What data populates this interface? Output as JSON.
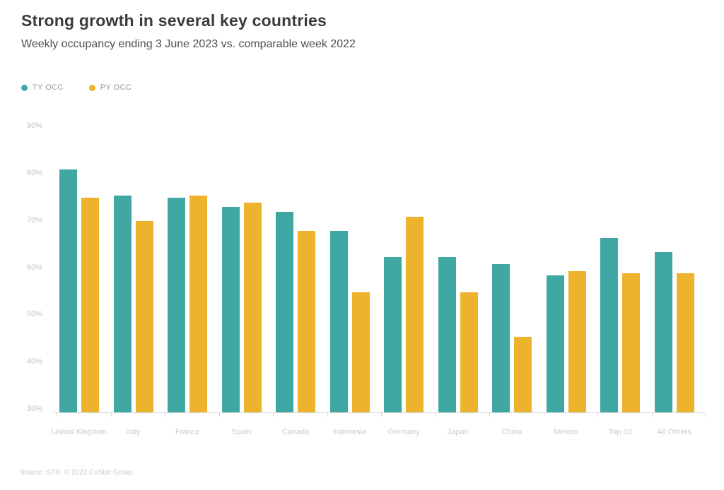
{
  "header": {
    "title": "Strong growth in several key countries",
    "subtitle": "Weekly occupancy ending 3 June 2023 vs. comparable week 2022"
  },
  "legend": {
    "items": [
      {
        "label": "TY OCC",
        "color": "#3fa8a3"
      },
      {
        "label": "PY OCC",
        "color": "#edb32c"
      }
    ]
  },
  "footer": {
    "source": "Source: STR. © 2023 CoStar Group."
  },
  "colors": {
    "ty_bar": "#3fa8a3",
    "py_bar": "#edb32c",
    "title_text": "#3b3b3b",
    "axis_text": "#c0c0c0",
    "background": "#ffffff"
  },
  "chart_data": {
    "type": "bar",
    "title": "Strong growth in several key countries",
    "subtitle": "Weekly occupancy ending 3 June 2023 vs. comparable week 2022",
    "categories": [
      "United Kingdom",
      "Italy",
      "France",
      "Spain",
      "Canada",
      "Indonesia",
      "Germany",
      "Japan",
      "China",
      "Mexico",
      "Top 10",
      "All Others"
    ],
    "series": [
      {
        "name": "TY OCC",
        "color": "#3fa8a3",
        "values": [
          81.5,
          76.0,
          75.5,
          73.5,
          72.5,
          68.5,
          63.0,
          63.0,
          61.5,
          59.0,
          67.0,
          64.0
        ]
      },
      {
        "name": "PY OCC",
        "color": "#edb32c",
        "values": [
          75.5,
          70.5,
          76.0,
          74.5,
          68.5,
          55.5,
          71.5,
          55.5,
          46.0,
          60.0,
          59.5,
          59.5
        ]
      }
    ],
    "xlabel": "",
    "ylabel": "",
    "ylim": [
      30,
      92
    ],
    "yticks": [
      90,
      80,
      70,
      60,
      50,
      40,
      30
    ],
    "ytick_format": "{v}%",
    "grid": false,
    "legend_position": "top-left",
    "value_unit": "percent occupancy"
  }
}
